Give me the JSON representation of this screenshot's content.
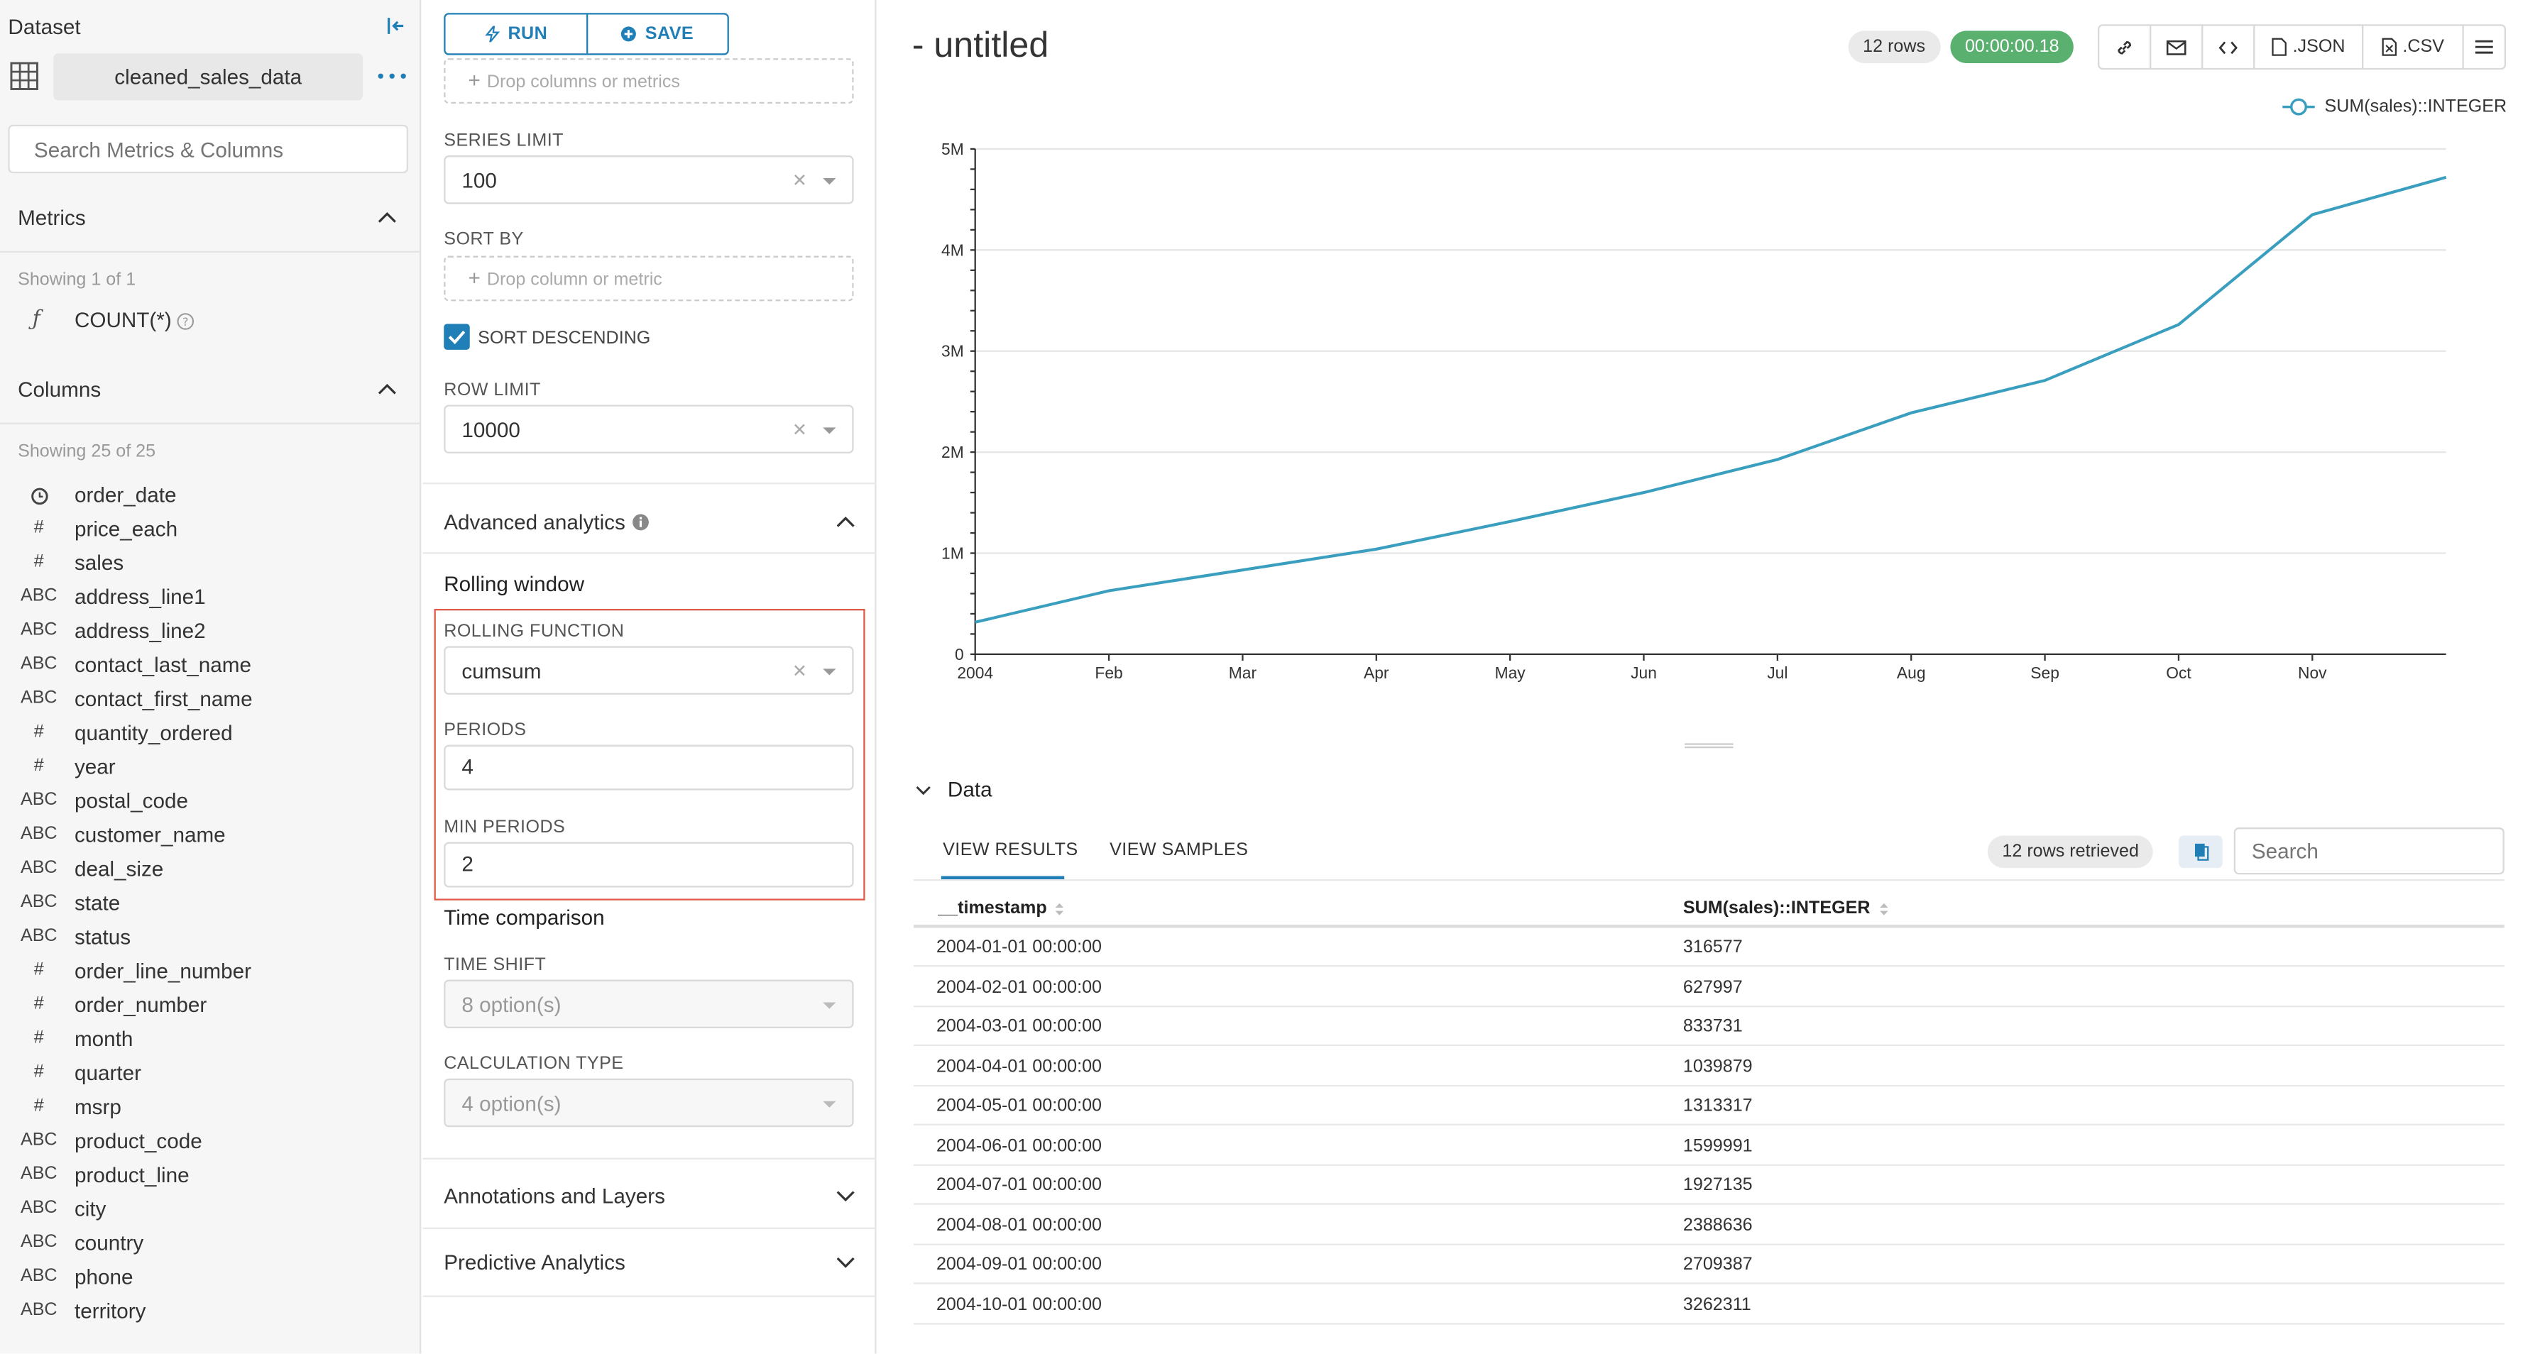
{
  "dataset": {
    "panel_title": "Dataset",
    "name": "cleaned_sales_data",
    "search_placeholder": "Search Metrics & Columns",
    "metrics_heading": "Metrics",
    "metrics_showing": "Showing 1 of 1",
    "metrics": [
      {
        "type": "ƒ",
        "name": "COUNT(*)"
      }
    ],
    "columns_heading": "Columns",
    "columns_showing": "Showing 25 of 25",
    "columns": [
      {
        "type": "clock",
        "name": "order_date"
      },
      {
        "type": "#",
        "name": "price_each"
      },
      {
        "type": "#",
        "name": "sales"
      },
      {
        "type": "ABC",
        "name": "address_line1"
      },
      {
        "type": "ABC",
        "name": "address_line2"
      },
      {
        "type": "ABC",
        "name": "contact_last_name"
      },
      {
        "type": "ABC",
        "name": "contact_first_name"
      },
      {
        "type": "#",
        "name": "quantity_ordered"
      },
      {
        "type": "#",
        "name": "year"
      },
      {
        "type": "ABC",
        "name": "postal_code"
      },
      {
        "type": "ABC",
        "name": "customer_name"
      },
      {
        "type": "ABC",
        "name": "deal_size"
      },
      {
        "type": "ABC",
        "name": "state"
      },
      {
        "type": "ABC",
        "name": "status"
      },
      {
        "type": "#",
        "name": "order_line_number"
      },
      {
        "type": "#",
        "name": "order_number"
      },
      {
        "type": "#",
        "name": "month"
      },
      {
        "type": "#",
        "name": "quarter"
      },
      {
        "type": "#",
        "name": "msrp"
      },
      {
        "type": "ABC",
        "name": "product_code"
      },
      {
        "type": "ABC",
        "name": "product_line"
      },
      {
        "type": "ABC",
        "name": "city"
      },
      {
        "type": "ABC",
        "name": "country"
      },
      {
        "type": "ABC",
        "name": "phone"
      },
      {
        "type": "ABC",
        "name": "territory"
      }
    ]
  },
  "controls": {
    "run_label": "RUN",
    "save_label": "SAVE",
    "drop_columns_metrics": "Drop columns or metrics",
    "series_limit_label": "SERIES LIMIT",
    "series_limit_value": "100",
    "sort_by_label": "SORT BY",
    "drop_column_metric": "Drop column or metric",
    "sort_descending_label": "SORT DESCENDING",
    "row_limit_label": "ROW LIMIT",
    "row_limit_value": "10000",
    "advanced_analytics": "Advanced analytics",
    "rolling_window": "Rolling window",
    "rolling_function_label": "ROLLING FUNCTION",
    "rolling_function_value": "cumsum",
    "periods_label": "PERIODS",
    "periods_value": "4",
    "min_periods_label": "MIN PERIODS",
    "min_periods_value": "2",
    "time_comparison": "Time comparison",
    "time_shift_label": "TIME SHIFT",
    "time_shift_placeholder": "8 option(s)",
    "calc_type_label": "CALCULATION TYPE",
    "calc_type_placeholder": "4 option(s)",
    "annotations_layers": "Annotations and Layers",
    "predictive_analytics": "Predictive Analytics"
  },
  "header": {
    "title": "- untitled",
    "rows_badge": "12 rows",
    "time_badge": "00:00:00.18",
    "json_label": ".JSON",
    "csv_label": ".CSV"
  },
  "chart_data": {
    "type": "line",
    "series": [
      {
        "name": "SUM(sales)::INTEGER",
        "values": [
          316577,
          627997,
          833731,
          1039879,
          1313317,
          1599991,
          1927135,
          2388636,
          2709387,
          3262311,
          4350000,
          4720000
        ]
      }
    ],
    "x": [
      "2004-01",
      "2004-02",
      "2004-03",
      "2004-04",
      "2004-05",
      "2004-06",
      "2004-07",
      "2004-08",
      "2004-09",
      "2004-10",
      "2004-11",
      "2004-12"
    ],
    "x_ticks": [
      "2004",
      "Feb",
      "Mar",
      "Apr",
      "May",
      "Jun",
      "Jul",
      "Aug",
      "Sep",
      "Oct",
      "Nov"
    ],
    "y_ticks": [
      "0",
      "1M",
      "2M",
      "3M",
      "4M",
      "5M"
    ],
    "ylim": [
      0,
      5000000
    ],
    "grid": true,
    "legend": "top-right",
    "color": "#3a9fbf"
  },
  "data_panel": {
    "heading": "Data",
    "tab_results": "VIEW RESULTS",
    "tab_samples": "VIEW SAMPLES",
    "rows_retrieved": "12 rows retrieved",
    "search_placeholder": "Search",
    "col1": "__timestamp",
    "col2": "SUM(sales)::INTEGER",
    "rows": [
      [
        "2004-01-01 00:00:00",
        "316577"
      ],
      [
        "2004-02-01 00:00:00",
        "627997"
      ],
      [
        "2004-03-01 00:00:00",
        "833731"
      ],
      [
        "2004-04-01 00:00:00",
        "1039879"
      ],
      [
        "2004-05-01 00:00:00",
        "1313317"
      ],
      [
        "2004-06-01 00:00:00",
        "1599991"
      ],
      [
        "2004-07-01 00:00:00",
        "1927135"
      ],
      [
        "2004-08-01 00:00:00",
        "2388636"
      ],
      [
        "2004-09-01 00:00:00",
        "2709387"
      ],
      [
        "2004-10-01 00:00:00",
        "3262311"
      ]
    ]
  }
}
